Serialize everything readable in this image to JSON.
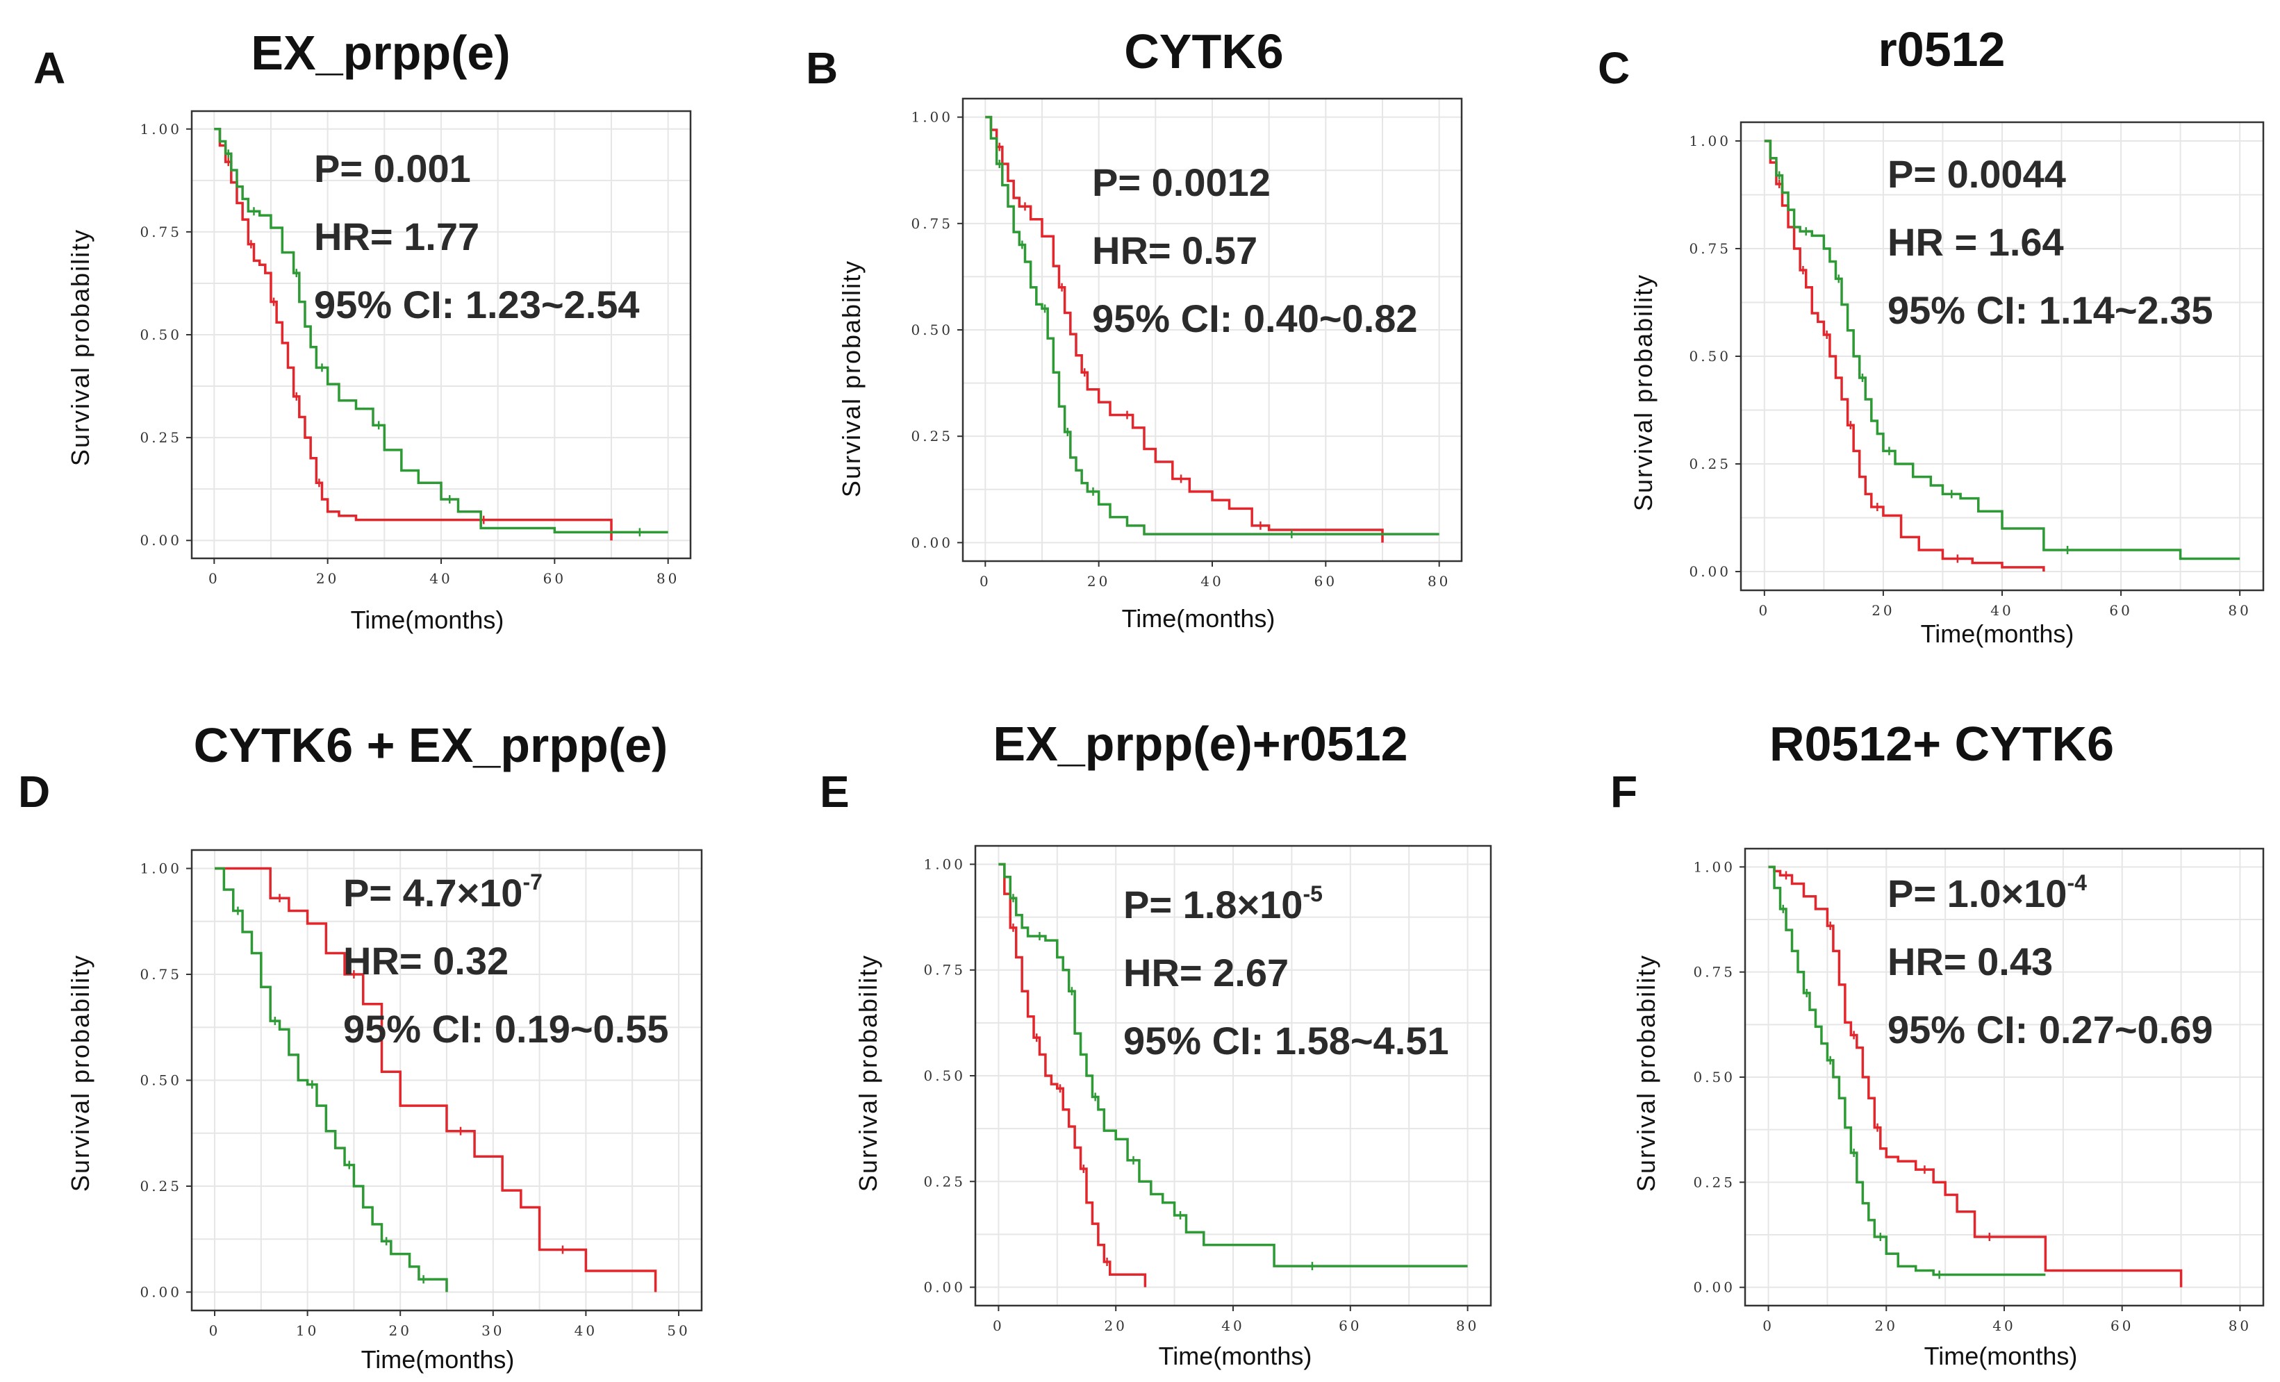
{
  "colors": {
    "red": "#e3262b",
    "green": "#2e9a35"
  },
  "chart_data": [
    {
      "type": "line",
      "panel": "A",
      "title": "EX_prpp(e)",
      "xlabel": "Time(months)",
      "ylabel": "Survival probability",
      "xlim": [
        0,
        80
      ],
      "ylim": [
        0,
        1
      ],
      "xticks": [
        0,
        20,
        40,
        60,
        80
      ],
      "xtick_labels": [
        "0",
        "20",
        "40",
        "60",
        "80"
      ],
      "yticks": [
        0,
        0.25,
        0.5,
        0.75,
        1.0
      ],
      "ytick_labels": [
        "0.00",
        "0.25",
        "0.50",
        "0.75",
        "1.00"
      ],
      "stats": {
        "p": "P= 0.001",
        "hr": "HR= 1.77",
        "ci": "95% CI: 1.23~2.54"
      },
      "series": [
        {
          "name": "red",
          "color": "#e3262b",
          "x": [
            0,
            1,
            2,
            3,
            4,
            5,
            6,
            7,
            8,
            9,
            10,
            11,
            12,
            13,
            14,
            15,
            16,
            17,
            18,
            19,
            20,
            22,
            25,
            70
          ],
          "y": [
            1.0,
            0.96,
            0.92,
            0.87,
            0.82,
            0.78,
            0.72,
            0.68,
            0.67,
            0.65,
            0.58,
            0.53,
            0.48,
            0.42,
            0.35,
            0.3,
            0.25,
            0.2,
            0.14,
            0.1,
            0.07,
            0.06,
            0.05,
            0.0
          ]
        },
        {
          "name": "green",
          "color": "#2e9a35",
          "x": [
            0,
            1,
            2,
            3,
            4,
            5,
            6,
            8,
            10,
            12,
            14,
            15,
            16,
            17,
            18,
            20,
            22,
            25,
            28,
            30,
            33,
            36,
            40,
            43,
            47,
            60,
            70,
            80
          ],
          "y": [
            1.0,
            0.97,
            0.94,
            0.9,
            0.86,
            0.83,
            0.8,
            0.79,
            0.76,
            0.7,
            0.65,
            0.58,
            0.52,
            0.47,
            0.42,
            0.38,
            0.34,
            0.32,
            0.28,
            0.22,
            0.17,
            0.14,
            0.1,
            0.07,
            0.03,
            0.02,
            0.02,
            0.02
          ]
        }
      ]
    },
    {
      "type": "line",
      "panel": "B",
      "title": "CYTK6",
      "xlabel": "Time(months)",
      "ylabel": "Survival probability",
      "xlim": [
        0,
        80
      ],
      "ylim": [
        0,
        1
      ],
      "xticks": [
        0,
        20,
        40,
        60,
        80
      ],
      "xtick_labels": [
        "0",
        "20",
        "40",
        "60",
        "80"
      ],
      "yticks": [
        0,
        0.25,
        0.5,
        0.75,
        1.0
      ],
      "ytick_labels": [
        "0.00",
        "0.25",
        "0.50",
        "0.75",
        "1.00"
      ],
      "stats": {
        "p": "P= 0.0012",
        "hr": "HR= 0.57",
        "ci": "95% CI: 0.40~0.82"
      },
      "series": [
        {
          "name": "red",
          "color": "#e3262b",
          "x": [
            0,
            1,
            2,
            3,
            4,
            5,
            6,
            8,
            10,
            12,
            13,
            14,
            15,
            16,
            17,
            18,
            20,
            22,
            24,
            26,
            28,
            30,
            33,
            36,
            40,
            43,
            47,
            50,
            60,
            70
          ],
          "y": [
            1.0,
            0.97,
            0.93,
            0.89,
            0.85,
            0.81,
            0.79,
            0.76,
            0.72,
            0.65,
            0.6,
            0.54,
            0.49,
            0.44,
            0.4,
            0.36,
            0.33,
            0.3,
            0.3,
            0.27,
            0.22,
            0.19,
            0.15,
            0.12,
            0.1,
            0.08,
            0.04,
            0.03,
            0.03,
            0.0
          ]
        },
        {
          "name": "green",
          "color": "#2e9a35",
          "x": [
            0,
            1,
            2,
            3,
            4,
            5,
            6,
            7,
            8,
            9,
            10,
            11,
            12,
            13,
            14,
            15,
            16,
            17,
            18,
            20,
            22,
            25,
            28,
            80
          ],
          "y": [
            1.0,
            0.95,
            0.89,
            0.84,
            0.79,
            0.73,
            0.7,
            0.66,
            0.6,
            0.56,
            0.55,
            0.48,
            0.4,
            0.32,
            0.26,
            0.2,
            0.17,
            0.14,
            0.12,
            0.09,
            0.06,
            0.04,
            0.02,
            0.02
          ]
        }
      ]
    },
    {
      "type": "line",
      "panel": "C",
      "title": "r0512",
      "xlabel": "Time(months)",
      "ylabel": "Survival probability",
      "xlim": [
        0,
        80
      ],
      "ylim": [
        0,
        1
      ],
      "xticks": [
        0,
        20,
        40,
        60,
        80
      ],
      "xtick_labels": [
        "0",
        "20",
        "40",
        "60",
        "80"
      ],
      "yticks": [
        0,
        0.25,
        0.5,
        0.75,
        1.0
      ],
      "ytick_labels": [
        "0.00",
        "0.25",
        "0.50",
        "0.75",
        "1.00"
      ],
      "stats": {
        "p": "P= 0.0044",
        "hr": "HR = 1.64",
        "ci": "95% CI: 1.14~2.35"
      },
      "series": [
        {
          "name": "red",
          "color": "#e3262b",
          "x": [
            0,
            1,
            2,
            3,
            4,
            5,
            6,
            7,
            8,
            9,
            10,
            11,
            12,
            13,
            14,
            15,
            16,
            17,
            18,
            20,
            23,
            26,
            30,
            35,
            40,
            47
          ],
          "y": [
            1.0,
            0.95,
            0.9,
            0.85,
            0.8,
            0.75,
            0.7,
            0.66,
            0.6,
            0.58,
            0.55,
            0.5,
            0.45,
            0.4,
            0.34,
            0.28,
            0.22,
            0.18,
            0.15,
            0.13,
            0.08,
            0.05,
            0.03,
            0.02,
            0.01,
            0.0
          ]
        },
        {
          "name": "green",
          "color": "#2e9a35",
          "x": [
            0,
            1,
            2,
            3,
            4,
            5,
            6,
            8,
            10,
            11,
            12,
            13,
            14,
            15,
            16,
            17,
            18,
            19,
            20,
            22,
            25,
            28,
            30,
            33,
            36,
            40,
            47,
            55,
            60,
            70,
            80
          ],
          "y": [
            1.0,
            0.96,
            0.92,
            0.88,
            0.84,
            0.8,
            0.79,
            0.78,
            0.75,
            0.72,
            0.68,
            0.62,
            0.56,
            0.5,
            0.45,
            0.4,
            0.35,
            0.32,
            0.28,
            0.25,
            0.22,
            0.2,
            0.18,
            0.17,
            0.14,
            0.1,
            0.05,
            0.05,
            0.05,
            0.03,
            0.03
          ]
        }
      ]
    },
    {
      "type": "line",
      "panel": "D",
      "title": "CYTK6 + EX_prpp(e)",
      "xlabel": "Time(months)",
      "ylabel": "Survival probability",
      "xlim": [
        0,
        50
      ],
      "ylim": [
        0,
        1
      ],
      "xticks": [
        0,
        10,
        20,
        30,
        40,
        50
      ],
      "xtick_labels": [
        "0",
        "10",
        "20",
        "30",
        "40",
        "50"
      ],
      "yticks": [
        0,
        0.25,
        0.5,
        0.75,
        1.0
      ],
      "ytick_labels": [
        "0.00",
        "0.25",
        "0.50",
        "0.75",
        "1.00"
      ],
      "stats": {
        "p": "P= 4.7×10",
        "p_exp": "-7",
        "hr": "HR= 0.32",
        "ci": "95% CI: 0.19~0.55"
      },
      "series": [
        {
          "name": "red",
          "color": "#e3262b",
          "x": [
            0,
            4,
            6,
            8,
            10,
            12,
            14,
            16,
            18,
            20,
            25,
            28,
            31,
            33,
            35,
            40,
            47.5
          ],
          "y": [
            1.0,
            1.0,
            0.93,
            0.9,
            0.87,
            0.8,
            0.75,
            0.68,
            0.52,
            0.44,
            0.38,
            0.32,
            0.24,
            0.2,
            0.1,
            0.05,
            0.0
          ]
        },
        {
          "name": "green",
          "color": "#2e9a35",
          "x": [
            0,
            1,
            2,
            3,
            4,
            5,
            6,
            7,
            8,
            9,
            10,
            11,
            12,
            13,
            14,
            15,
            16,
            17,
            18,
            19,
            20,
            21,
            22,
            23,
            25
          ],
          "y": [
            1.0,
            0.95,
            0.9,
            0.85,
            0.8,
            0.72,
            0.64,
            0.62,
            0.56,
            0.5,
            0.49,
            0.44,
            0.38,
            0.34,
            0.3,
            0.25,
            0.2,
            0.16,
            0.12,
            0.09,
            0.09,
            0.06,
            0.03,
            0.03,
            0.0
          ]
        }
      ]
    },
    {
      "type": "line",
      "panel": "E",
      "title": "EX_prpp(e)+r0512",
      "xlabel": "Time(months)",
      "ylabel": "Survival probability",
      "xlim": [
        0,
        80
      ],
      "ylim": [
        0,
        1
      ],
      "xticks": [
        0,
        20,
        40,
        60,
        80
      ],
      "xtick_labels": [
        "0",
        "20",
        "40",
        "60",
        "80"
      ],
      "yticks": [
        0,
        0.25,
        0.5,
        0.75,
        1.0
      ],
      "ytick_labels": [
        "0.00",
        "0.25",
        "0.50",
        "0.75",
        "1.00"
      ],
      "stats": {
        "p": "P= 1.8×10",
        "p_exp": "-5",
        "hr": "HR= 2.67",
        "ci": "95% CI: 1.58~4.51"
      },
      "series": [
        {
          "name": "red",
          "color": "#e3262b",
          "x": [
            0,
            1,
            2,
            3,
            4,
            5,
            6,
            7,
            8,
            9,
            10,
            11,
            12,
            13,
            14,
            15,
            16,
            17,
            18,
            19,
            20,
            22,
            25
          ],
          "y": [
            1.0,
            0.93,
            0.85,
            0.78,
            0.7,
            0.64,
            0.59,
            0.55,
            0.5,
            0.48,
            0.47,
            0.42,
            0.38,
            0.33,
            0.28,
            0.2,
            0.15,
            0.1,
            0.06,
            0.03,
            0.03,
            0.03,
            0.0
          ]
        },
        {
          "name": "green",
          "color": "#2e9a35",
          "x": [
            0,
            1,
            2,
            3,
            4,
            5,
            6,
            8,
            10,
            11,
            12,
            13,
            14,
            15,
            16,
            17,
            18,
            20,
            22,
            24,
            26,
            28,
            30,
            32,
            35,
            40,
            47,
            60,
            80
          ],
          "y": [
            1.0,
            0.97,
            0.92,
            0.88,
            0.85,
            0.83,
            0.83,
            0.82,
            0.78,
            0.75,
            0.7,
            0.6,
            0.55,
            0.5,
            0.45,
            0.42,
            0.37,
            0.35,
            0.3,
            0.25,
            0.22,
            0.2,
            0.17,
            0.13,
            0.1,
            0.1,
            0.05,
            0.05,
            0.05
          ]
        }
      ]
    },
    {
      "type": "line",
      "panel": "F",
      "title": "R0512+ CYTK6",
      "xlabel": "Time(months)",
      "ylabel": "Survival probability",
      "xlim": [
        0,
        80
      ],
      "ylim": [
        0,
        1
      ],
      "xticks": [
        0,
        20,
        40,
        60,
        80
      ],
      "xtick_labels": [
        "0",
        "20",
        "40",
        "60",
        "80"
      ],
      "yticks": [
        0,
        0.25,
        0.5,
        0.75,
        1.0
      ],
      "ytick_labels": [
        "0.00",
        "0.25",
        "0.50",
        "0.75",
        "1.00"
      ],
      "stats": {
        "p": "P= 1.0×10",
        "p_exp": "-4",
        "hr": "HR= 0.43",
        "ci": "95% CI: 0.27~0.69"
      },
      "series": [
        {
          "name": "red",
          "color": "#e3262b",
          "x": [
            0,
            1,
            2,
            4,
            6,
            8,
            10,
            11,
            12,
            13,
            14,
            15,
            16,
            17,
            18,
            19,
            20,
            22,
            25,
            28,
            30,
            32,
            35,
            40,
            47,
            60,
            70
          ],
          "y": [
            1.0,
            0.99,
            0.98,
            0.96,
            0.93,
            0.9,
            0.86,
            0.8,
            0.72,
            0.63,
            0.6,
            0.57,
            0.5,
            0.45,
            0.38,
            0.33,
            0.31,
            0.3,
            0.28,
            0.25,
            0.22,
            0.18,
            0.12,
            0.12,
            0.04,
            0.04,
            0.0
          ]
        },
        {
          "name": "green",
          "color": "#2e9a35",
          "x": [
            0,
            1,
            2,
            3,
            4,
            5,
            6,
            7,
            8,
            9,
            10,
            11,
            12,
            13,
            14,
            15,
            16,
            17,
            18,
            20,
            22,
            25,
            28,
            30,
            47
          ],
          "y": [
            1.0,
            0.95,
            0.9,
            0.85,
            0.8,
            0.75,
            0.7,
            0.66,
            0.62,
            0.58,
            0.54,
            0.5,
            0.45,
            0.38,
            0.32,
            0.25,
            0.2,
            0.16,
            0.12,
            0.08,
            0.05,
            0.04,
            0.03,
            0.03,
            0.03
          ]
        }
      ]
    }
  ]
}
